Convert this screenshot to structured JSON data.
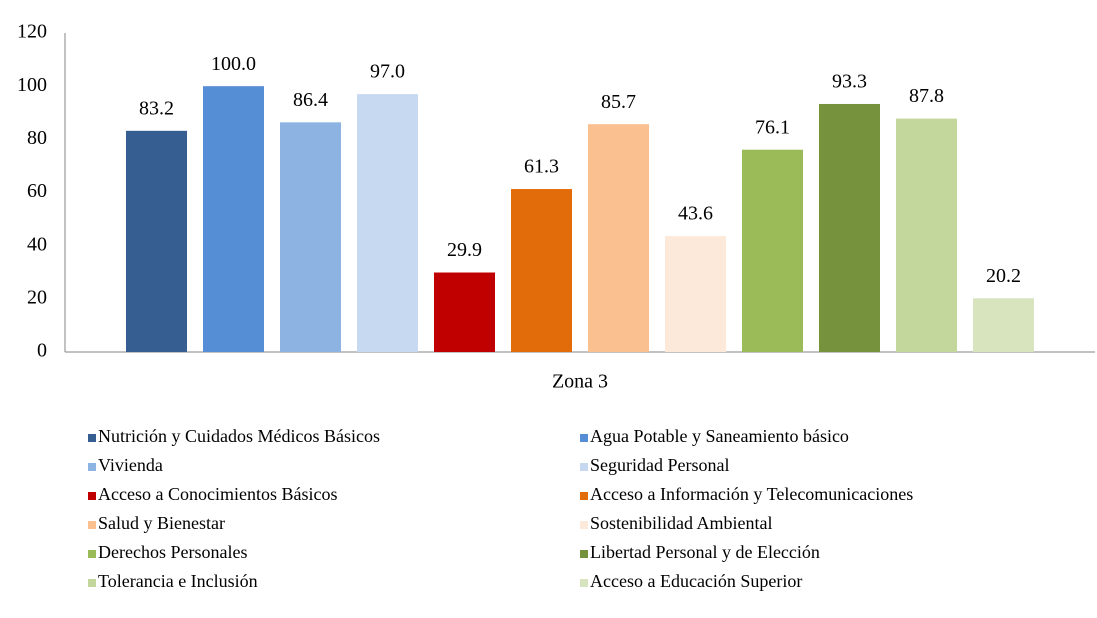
{
  "chart_data": {
    "type": "bar",
    "categories": [
      "Zona 3"
    ],
    "series": [
      {
        "name": "Nutrición y Cuidados Médicos Básicos",
        "color": "#365e91",
        "values": [
          83.2
        ],
        "value_labels": [
          "83.2"
        ]
      },
      {
        "name": "Agua Potable y Saneamiento básico",
        "color": "#558ed5",
        "values": [
          100.0
        ],
        "value_labels": [
          "100.0"
        ]
      },
      {
        "name": "Vivienda",
        "color": "#8db3e2",
        "values": [
          86.4
        ],
        "value_labels": [
          "86.4"
        ]
      },
      {
        "name": "Seguridad Personal",
        "color": "#c6d9f1",
        "values": [
          97.0
        ],
        "value_labels": [
          "97.0"
        ]
      },
      {
        "name": "Acceso a Conocimientos Básicos",
        "color": "#c00000",
        "values": [
          29.9
        ],
        "value_labels": [
          "29.9"
        ]
      },
      {
        "name": "Acceso a Información y Telecomunicaciones",
        "color": "#e36c0a",
        "values": [
          61.3
        ],
        "value_labels": [
          "61.3"
        ]
      },
      {
        "name": "Salud y Bienestar",
        "color": "#fac090",
        "values": [
          85.7
        ],
        "value_labels": [
          "85.7"
        ]
      },
      {
        "name": "Sostenibilidad Ambiental",
        "color": "#fde9d9",
        "values": [
          43.6
        ],
        "value_labels": [
          "43.6"
        ]
      },
      {
        "name": "Derechos Personales",
        "color": "#9bbb59",
        "values": [
          76.1
        ],
        "value_labels": [
          "76.1"
        ]
      },
      {
        "name": "Libertad Personal y de Elección",
        "color": "#76923c",
        "values": [
          93.3
        ],
        "value_labels": [
          "93.3"
        ]
      },
      {
        "name": "Tolerancia e Inclusión",
        "color": "#c3d69b",
        "values": [
          87.8
        ],
        "value_labels": [
          "87.8"
        ]
      },
      {
        "name": "Acceso a Educación Superior",
        "color": "#d7e4bd",
        "values": [
          20.2
        ],
        "value_labels": [
          "20.2"
        ]
      }
    ],
    "ylim": [
      0,
      120
    ],
    "yticks": [
      0,
      20,
      40,
      60,
      80,
      100,
      120
    ],
    "grid": false,
    "legend": "bottom"
  }
}
